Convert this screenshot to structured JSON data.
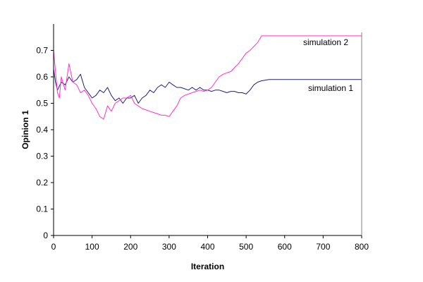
{
  "chart_data": {
    "type": "line",
    "title": "",
    "xlabel": "Iteration",
    "ylabel": "Opinion 1",
    "xlim": [
      0,
      800
    ],
    "ylim": [
      0,
      0.8
    ],
    "x_ticks": [
      "0",
      "100",
      "200",
      "300",
      "400",
      "500",
      "600",
      "700",
      "800"
    ],
    "y_ticks": [
      "0",
      "0.1",
      "0.2",
      "0.3",
      "0.4",
      "0.5",
      "0.6",
      "0.7"
    ],
    "grid": false,
    "legend": "inline labels at right",
    "series": [
      {
        "name": "simulation 1",
        "color": "#1f1f7a",
        "x": [
          0,
          5,
          10,
          20,
          30,
          40,
          50,
          60,
          70,
          80,
          90,
          100,
          110,
          120,
          130,
          140,
          150,
          160,
          170,
          180,
          190,
          200,
          210,
          220,
          230,
          240,
          250,
          260,
          270,
          280,
          290,
          300,
          310,
          320,
          330,
          340,
          350,
          360,
          370,
          380,
          390,
          400,
          410,
          420,
          430,
          440,
          450,
          460,
          470,
          480,
          490,
          500,
          510,
          520,
          530,
          540,
          560,
          580,
          600,
          620,
          650,
          700,
          750,
          800
        ],
        "y": [
          0.63,
          0.58,
          0.55,
          0.58,
          0.57,
          0.6,
          0.58,
          0.59,
          0.61,
          0.56,
          0.54,
          0.52,
          0.53,
          0.55,
          0.54,
          0.56,
          0.53,
          0.51,
          0.52,
          0.5,
          0.52,
          0.52,
          0.53,
          0.5,
          0.52,
          0.53,
          0.55,
          0.54,
          0.56,
          0.57,
          0.56,
          0.58,
          0.57,
          0.56,
          0.56,
          0.555,
          0.55,
          0.56,
          0.55,
          0.56,
          0.55,
          0.55,
          0.545,
          0.55,
          0.55,
          0.545,
          0.54,
          0.545,
          0.545,
          0.54,
          0.54,
          0.535,
          0.55,
          0.57,
          0.58,
          0.585,
          0.59,
          0.59,
          0.59,
          0.59,
          0.59,
          0.59,
          0.59,
          0.59
        ]
      },
      {
        "name": "simulation 2",
        "color": "#ff33cc",
        "x": [
          0,
          5,
          10,
          15,
          20,
          30,
          40,
          50,
          60,
          70,
          80,
          90,
          100,
          110,
          120,
          130,
          140,
          150,
          160,
          170,
          180,
          190,
          200,
          210,
          220,
          230,
          240,
          250,
          260,
          270,
          280,
          290,
          300,
          310,
          320,
          330,
          340,
          350,
          360,
          370,
          380,
          390,
          400,
          410,
          420,
          430,
          440,
          450,
          460,
          470,
          480,
          490,
          500,
          510,
          520,
          530,
          540,
          560,
          600,
          650,
          700,
          750,
          800
        ],
        "y": [
          0.7,
          0.62,
          0.54,
          0.52,
          0.6,
          0.55,
          0.65,
          0.58,
          0.57,
          0.54,
          0.55,
          0.53,
          0.5,
          0.48,
          0.45,
          0.44,
          0.49,
          0.47,
          0.5,
          0.51,
          0.52,
          0.52,
          0.53,
          0.5,
          0.49,
          0.48,
          0.475,
          0.47,
          0.465,
          0.46,
          0.455,
          0.455,
          0.45,
          0.47,
          0.49,
          0.52,
          0.53,
          0.535,
          0.54,
          0.545,
          0.55,
          0.545,
          0.55,
          0.56,
          0.58,
          0.6,
          0.61,
          0.615,
          0.62,
          0.635,
          0.65,
          0.67,
          0.69,
          0.7,
          0.715,
          0.73,
          0.755,
          0.755,
          0.755,
          0.755,
          0.755,
          0.755,
          0.755
        ]
      }
    ]
  }
}
